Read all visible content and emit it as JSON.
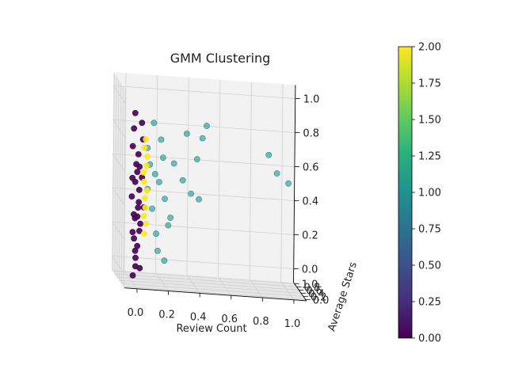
{
  "chart_data": {
    "type": "scatter",
    "title": "GMM Clustering",
    "xlabel": "Review Count",
    "ylabel": "Average Stars",
    "zlabel": "",
    "xlim": [
      0,
      1
    ],
    "ylim": [
      0,
      1
    ],
    "zlim": [
      0,
      1
    ],
    "x_ticks": [
      "0.0",
      "0.2",
      "0.4",
      "0.6",
      "0.8",
      "1.0"
    ],
    "y_ticks": [
      "0.0",
      "0.2",
      "0.4",
      "0.6",
      "0.8",
      "1.0"
    ],
    "z_ticks": [
      "0.0",
      "0.2",
      "0.4",
      "0.6",
      "0.8",
      "1.0"
    ],
    "grid": true,
    "colorbar": {
      "min": 0.0,
      "max": 2.0,
      "ticks": [
        "0.00",
        "0.25",
        "0.50",
        "0.75",
        "1.00",
        "1.25",
        "1.50",
        "1.75",
        "2.00"
      ],
      "colormap": [
        "#440154",
        "#472d7b",
        "#3b528b",
        "#2c728e",
        "#21918c",
        "#28ae80",
        "#5ec962",
        "#addc30",
        "#fde725"
      ]
    },
    "series": [
      {
        "cluster": 0,
        "color": "#440154",
        "points": [
          {
            "x": 0.01,
            "y": 0.5,
            "z": 0.2
          },
          {
            "x": 0.02,
            "y": 0.55,
            "z": 0.3
          },
          {
            "x": 0.01,
            "y": 0.6,
            "z": 0.4
          },
          {
            "x": 0.02,
            "y": 0.45,
            "z": 0.5
          },
          {
            "x": 0.03,
            "y": 0.5,
            "z": 0.6
          },
          {
            "x": 0.01,
            "y": 0.55,
            "z": 0.7
          },
          {
            "x": 0.02,
            "y": 0.6,
            "z": 0.8
          },
          {
            "x": 0.03,
            "y": 0.65,
            "z": 0.15
          },
          {
            "x": 0.02,
            "y": 0.4,
            "z": 0.1
          },
          {
            "x": 0.03,
            "y": 0.5,
            "z": 0.05
          },
          {
            "x": 0.04,
            "y": 0.45,
            "z": 0.35
          },
          {
            "x": 0.05,
            "y": 0.5,
            "z": 0.45
          },
          {
            "x": 0.04,
            "y": 0.55,
            "z": 0.55
          },
          {
            "x": 0.05,
            "y": 0.6,
            "z": 0.65
          },
          {
            "x": 0.06,
            "y": 0.52,
            "z": 0.25
          },
          {
            "x": 0.07,
            "y": 0.48,
            "z": 0.75
          },
          {
            "x": 0.03,
            "y": 0.5,
            "z": 0.0
          },
          {
            "x": 0.05,
            "y": 0.4,
            "z": 0.0
          },
          {
            "x": 0.06,
            "y": 0.6,
            "z": 0.2
          },
          {
            "x": 0.08,
            "y": 0.5,
            "z": 0.35
          },
          {
            "x": 0.02,
            "y": 0.7,
            "z": 0.5
          },
          {
            "x": 0.04,
            "y": 0.35,
            "z": 0.6
          },
          {
            "x": 0.01,
            "y": 0.3,
            "z": 0.3
          },
          {
            "x": 0.03,
            "y": 0.25,
            "z": 0.4
          },
          {
            "x": 0.06,
            "y": 0.45,
            "z": 0.85
          },
          {
            "x": 0.02,
            "y": 0.5,
            "z": 0.9
          },
          {
            "x": 0.01,
            "y": 0.45,
            "z": -0.05
          },
          {
            "x": 0.04,
            "y": 0.5,
            "z": 0.12
          },
          {
            "x": 0.07,
            "y": 0.55,
            "z": 0.52
          },
          {
            "x": 0.05,
            "y": 0.65,
            "z": 0.28
          }
        ]
      },
      {
        "cluster": 1,
        "color": "#21918c",
        "points": [
          {
            "x": 0.1,
            "y": 0.5,
            "z": 0.7
          },
          {
            "x": 0.12,
            "y": 0.55,
            "z": 0.6
          },
          {
            "x": 0.15,
            "y": 0.5,
            "z": 0.55
          },
          {
            "x": 0.11,
            "y": 0.6,
            "z": 0.45
          },
          {
            "x": 0.13,
            "y": 0.45,
            "z": 0.35
          },
          {
            "x": 0.16,
            "y": 0.5,
            "z": 0.2
          },
          {
            "x": 0.18,
            "y": 0.55,
            "z": 0.5
          },
          {
            "x": 0.2,
            "y": 0.5,
            "z": 0.65
          },
          {
            "x": 0.22,
            "y": 0.6,
            "z": 0.4
          },
          {
            "x": 0.25,
            "y": 0.5,
            "z": 0.3
          },
          {
            "x": 0.27,
            "y": 0.5,
            "z": 0.62
          },
          {
            "x": 0.35,
            "y": 0.5,
            "z": 0.8
          },
          {
            "x": 0.42,
            "y": 0.55,
            "z": 0.65
          },
          {
            "x": 0.45,
            "y": 0.5,
            "z": 0.78
          },
          {
            "x": 0.48,
            "y": 0.55,
            "z": 0.85
          },
          {
            "x": 0.38,
            "y": 0.5,
            "z": 0.45
          },
          {
            "x": 0.43,
            "y": 0.5,
            "z": 0.42
          },
          {
            "x": 0.33,
            "y": 0.55,
            "z": 0.52
          },
          {
            "x": 0.88,
            "y": 0.6,
            "z": 0.7
          },
          {
            "x": 0.93,
            "y": 0.55,
            "z": 0.6
          },
          {
            "x": 1.0,
            "y": 0.5,
            "z": 0.55
          },
          {
            "x": 0.17,
            "y": 0.5,
            "z": 0.1
          },
          {
            "x": 0.21,
            "y": 0.45,
            "z": 0.05
          },
          {
            "x": 0.24,
            "y": 0.55,
            "z": 0.25
          },
          {
            "x": 0.14,
            "y": 0.5,
            "z": 0.85
          },
          {
            "x": 0.19,
            "y": 0.55,
            "z": 0.75
          }
        ]
      },
      {
        "cluster": 2,
        "color": "#fde725",
        "points": [
          {
            "x": 0.08,
            "y": 0.5,
            "z": 0.3
          },
          {
            "x": 0.09,
            "y": 0.55,
            "z": 0.4
          },
          {
            "x": 0.08,
            "y": 0.5,
            "z": 0.5
          },
          {
            "x": 0.09,
            "y": 0.45,
            "z": 0.6
          },
          {
            "x": 0.1,
            "y": 0.5,
            "z": 0.45
          },
          {
            "x": 0.08,
            "y": 0.55,
            "z": 0.55
          },
          {
            "x": 0.09,
            "y": 0.5,
            "z": 0.35
          },
          {
            "x": 0.1,
            "y": 0.5,
            "z": 0.65
          },
          {
            "x": 0.08,
            "y": 0.45,
            "z": 0.2
          },
          {
            "x": 0.09,
            "y": 0.5,
            "z": 0.75
          },
          {
            "x": 0.1,
            "y": 0.55,
            "z": 0.25
          },
          {
            "x": 0.08,
            "y": 0.5,
            "z": 0.7
          }
        ]
      }
    ]
  }
}
